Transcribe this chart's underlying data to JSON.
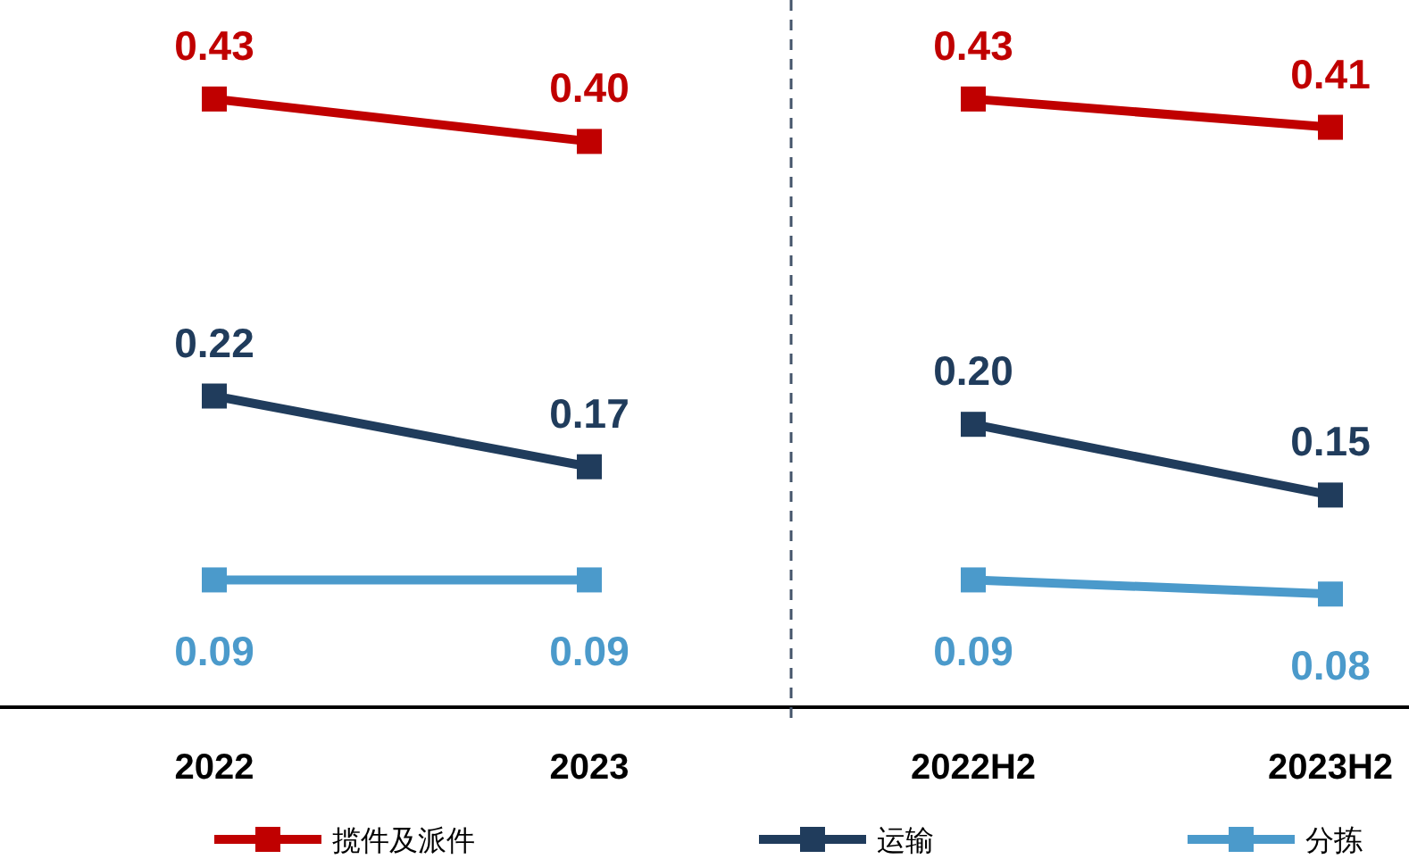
{
  "chart_data": [
    {
      "type": "line",
      "categories": [
        "2022",
        "2023"
      ],
      "ylim": [
        0,
        0.5
      ],
      "tick_labels": "x",
      "marker": "square",
      "legend": "bottom",
      "series": [
        {
          "name": "揽件及派件",
          "color": "#c00000",
          "values": [
            0.43,
            0.4
          ],
          "value_labels": [
            "0.43",
            "0.40"
          ]
        },
        {
          "name": "运输",
          "color": "#203c5c",
          "values": [
            0.22,
            0.17
          ],
          "value_labels": [
            "0.22",
            "0.17"
          ]
        },
        {
          "name": "分拣",
          "color": "#4b9acb",
          "values": [
            0.09,
            0.09
          ],
          "value_labels": [
            "0.09",
            "0.09"
          ]
        }
      ]
    },
    {
      "type": "line",
      "categories": [
        "2022H2",
        "2023H2"
      ],
      "ylim": [
        0,
        0.5
      ],
      "tick_labels": "x",
      "marker": "square",
      "legend": "bottom",
      "series": [
        {
          "name": "揽件及派件",
          "color": "#c00000",
          "values": [
            0.43,
            0.41
          ],
          "value_labels": [
            "0.43",
            "0.41"
          ]
        },
        {
          "name": "运输",
          "color": "#203c5c",
          "values": [
            0.2,
            0.15
          ],
          "value_labels": [
            "0.20",
            "0.15"
          ]
        },
        {
          "name": "分拣",
          "color": "#4b9acb",
          "values": [
            0.09,
            0.08
          ],
          "value_labels": [
            "0.09",
            "0.08"
          ]
        }
      ]
    }
  ]
}
